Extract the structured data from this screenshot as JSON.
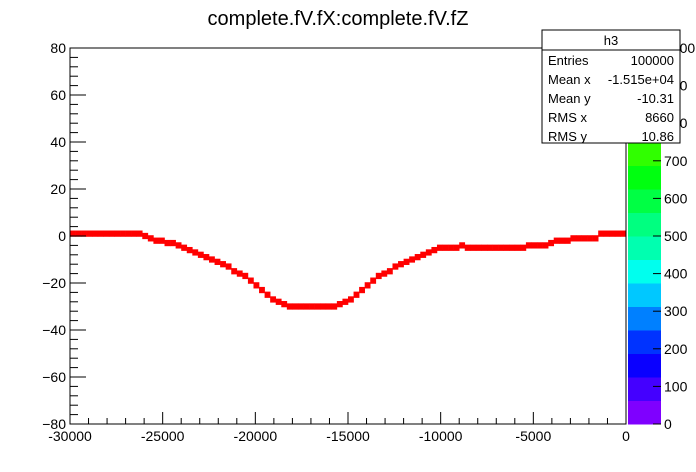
{
  "chart_data": {
    "type": "heatmap",
    "title": "complete.fV.fX:complete.fV.fZ",
    "xlabel": "",
    "ylabel": "",
    "xlim": [
      -30000,
      0
    ],
    "ylim": [
      -80,
      80
    ],
    "x_ticks": [
      -30000,
      -25000,
      -20000,
      -15000,
      -10000,
      -5000,
      0
    ],
    "y_ticks": [
      -80,
      -60,
      -40,
      -20,
      0,
      20,
      40,
      60,
      80
    ],
    "x_tick_labels": [
      "-30000",
      "-25000",
      "-20000",
      "-15000",
      "-10000",
      "-5000",
      "0"
    ],
    "y_tick_labels": [
      "−80",
      "−60",
      "−40",
      "−20",
      "0",
      "20",
      "40",
      "60",
      "80"
    ],
    "grid": false,
    "bin_width_x": 300,
    "bin_height_y": 1.6,
    "points": [
      {
        "x": -29850,
        "y": 1
      },
      {
        "x": -29550,
        "y": 1
      },
      {
        "x": -29250,
        "y": 1
      },
      {
        "x": -28950,
        "y": 1
      },
      {
        "x": -28650,
        "y": 1
      },
      {
        "x": -28350,
        "y": 1
      },
      {
        "x": -28050,
        "y": 1
      },
      {
        "x": -27750,
        "y": 1
      },
      {
        "x": -27450,
        "y": 1
      },
      {
        "x": -27150,
        "y": 1
      },
      {
        "x": -26850,
        "y": 1
      },
      {
        "x": -26550,
        "y": 1
      },
      {
        "x": -26250,
        "y": 1
      },
      {
        "x": -25950,
        "y": 0
      },
      {
        "x": -25650,
        "y": -1
      },
      {
        "x": -25350,
        "y": -2
      },
      {
        "x": -25050,
        "y": -2
      },
      {
        "x": -24750,
        "y": -3
      },
      {
        "x": -24450,
        "y": -3
      },
      {
        "x": -24150,
        "y": -4
      },
      {
        "x": -23850,
        "y": -5
      },
      {
        "x": -23550,
        "y": -6
      },
      {
        "x": -23250,
        "y": -7
      },
      {
        "x": -22950,
        "y": -8
      },
      {
        "x": -22650,
        "y": -9
      },
      {
        "x": -22350,
        "y": -10
      },
      {
        "x": -22050,
        "y": -11
      },
      {
        "x": -21750,
        "y": -12
      },
      {
        "x": -21450,
        "y": -13
      },
      {
        "x": -21150,
        "y": -15
      },
      {
        "x": -20850,
        "y": -16
      },
      {
        "x": -20550,
        "y": -17
      },
      {
        "x": -20250,
        "y": -19
      },
      {
        "x": -19950,
        "y": -21
      },
      {
        "x": -19650,
        "y": -23
      },
      {
        "x": -19350,
        "y": -25
      },
      {
        "x": -19050,
        "y": -27
      },
      {
        "x": -18750,
        "y": -28
      },
      {
        "x": -18450,
        "y": -29
      },
      {
        "x": -18150,
        "y": -30
      },
      {
        "x": -17850,
        "y": -30
      },
      {
        "x": -17550,
        "y": -30
      },
      {
        "x": -17250,
        "y": -30
      },
      {
        "x": -16950,
        "y": -30
      },
      {
        "x": -16650,
        "y": -30
      },
      {
        "x": -16350,
        "y": -30
      },
      {
        "x": -16050,
        "y": -30
      },
      {
        "x": -15750,
        "y": -30
      },
      {
        "x": -15450,
        "y": -29
      },
      {
        "x": -15150,
        "y": -28
      },
      {
        "x": -14850,
        "y": -27
      },
      {
        "x": -14550,
        "y": -25
      },
      {
        "x": -14250,
        "y": -23
      },
      {
        "x": -13950,
        "y": -21
      },
      {
        "x": -13650,
        "y": -19
      },
      {
        "x": -13350,
        "y": -17
      },
      {
        "x": -13050,
        "y": -16
      },
      {
        "x": -12750,
        "y": -15
      },
      {
        "x": -12450,
        "y": -13
      },
      {
        "x": -12150,
        "y": -12
      },
      {
        "x": -11850,
        "y": -11
      },
      {
        "x": -11550,
        "y": -10
      },
      {
        "x": -11250,
        "y": -9
      },
      {
        "x": -10950,
        "y": -8
      },
      {
        "x": -10650,
        "y": -7
      },
      {
        "x": -10350,
        "y": -6
      },
      {
        "x": -10050,
        "y": -5
      },
      {
        "x": -9750,
        "y": -5
      },
      {
        "x": -9450,
        "y": -5
      },
      {
        "x": -9150,
        "y": -5
      },
      {
        "x": -8850,
        "y": -4
      },
      {
        "x": -8550,
        "y": -5
      },
      {
        "x": -8250,
        "y": -5
      },
      {
        "x": -7950,
        "y": -5
      },
      {
        "x": -7650,
        "y": -5
      },
      {
        "x": -7350,
        "y": -5
      },
      {
        "x": -7050,
        "y": -5
      },
      {
        "x": -6750,
        "y": -5
      },
      {
        "x": -6450,
        "y": -5
      },
      {
        "x": -6150,
        "y": -5
      },
      {
        "x": -5850,
        "y": -5
      },
      {
        "x": -5550,
        "y": -5
      },
      {
        "x": -5250,
        "y": -4
      },
      {
        "x": -4950,
        "y": -4
      },
      {
        "x": -4650,
        "y": -4
      },
      {
        "x": -4350,
        "y": -4
      },
      {
        "x": -4050,
        "y": -3
      },
      {
        "x": -3750,
        "y": -2
      },
      {
        "x": -3450,
        "y": -2
      },
      {
        "x": -3150,
        "y": -2
      },
      {
        "x": -2850,
        "y": -1
      },
      {
        "x": -2550,
        "y": -1
      },
      {
        "x": -2250,
        "y": -1
      },
      {
        "x": -1950,
        "y": -1
      },
      {
        "x": -1650,
        "y": -1
      },
      {
        "x": -1350,
        "y": 1
      },
      {
        "x": -1050,
        "y": 1
      },
      {
        "x": -750,
        "y": 1
      },
      {
        "x": -450,
        "y": 1
      },
      {
        "x": -150,
        "y": 1
      }
    ],
    "point_color": "#ff0000",
    "palette_labels": [
      "0",
      "100",
      "200",
      "300",
      "400",
      "500",
      "600",
      "700",
      "800",
      "900",
      "1000"
    ],
    "palette_colors": [
      "#7f00ff",
      "#4400ff",
      "#0a00ff",
      "#0033ff",
      "#0080ff",
      "#00c8ff",
      "#00ffee",
      "#00ffb0",
      "#00ff80",
      "#00ff44",
      "#00ff10",
      "#30ff00",
      "#70ff00",
      "#a8ff00",
      "#d8ff00",
      "#ffff00"
    ],
    "stats": {
      "title": "h3",
      "rows": [
        {
          "label": "Entries",
          "value": "100000"
        },
        {
          "label": "Mean x",
          "value": "-1.515e+04"
        },
        {
          "label": "Mean y",
          "value": "-10.31"
        },
        {
          "label": "RMS x",
          "value": "8660"
        },
        {
          "label": "RMS y",
          "value": "10.86"
        }
      ]
    }
  }
}
